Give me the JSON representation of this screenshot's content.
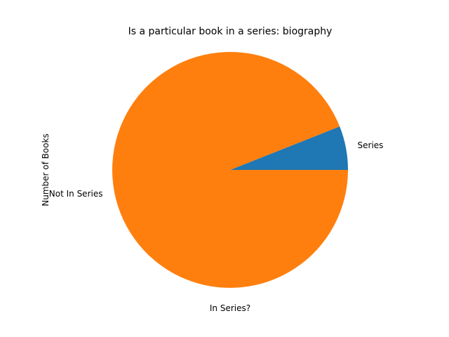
{
  "chart_data": {
    "type": "pie",
    "title": "Is a particular book in a series: biography",
    "xlabel": "In Series?",
    "ylabel": "Number of Books",
    "categories": [
      "Series",
      "Not In Series"
    ],
    "values": [
      6,
      94
    ],
    "colors": [
      "#1f77b4",
      "#ff7f0e"
    ],
    "legend": "none",
    "start_angle": 0,
    "direction": "counterclockwise"
  }
}
